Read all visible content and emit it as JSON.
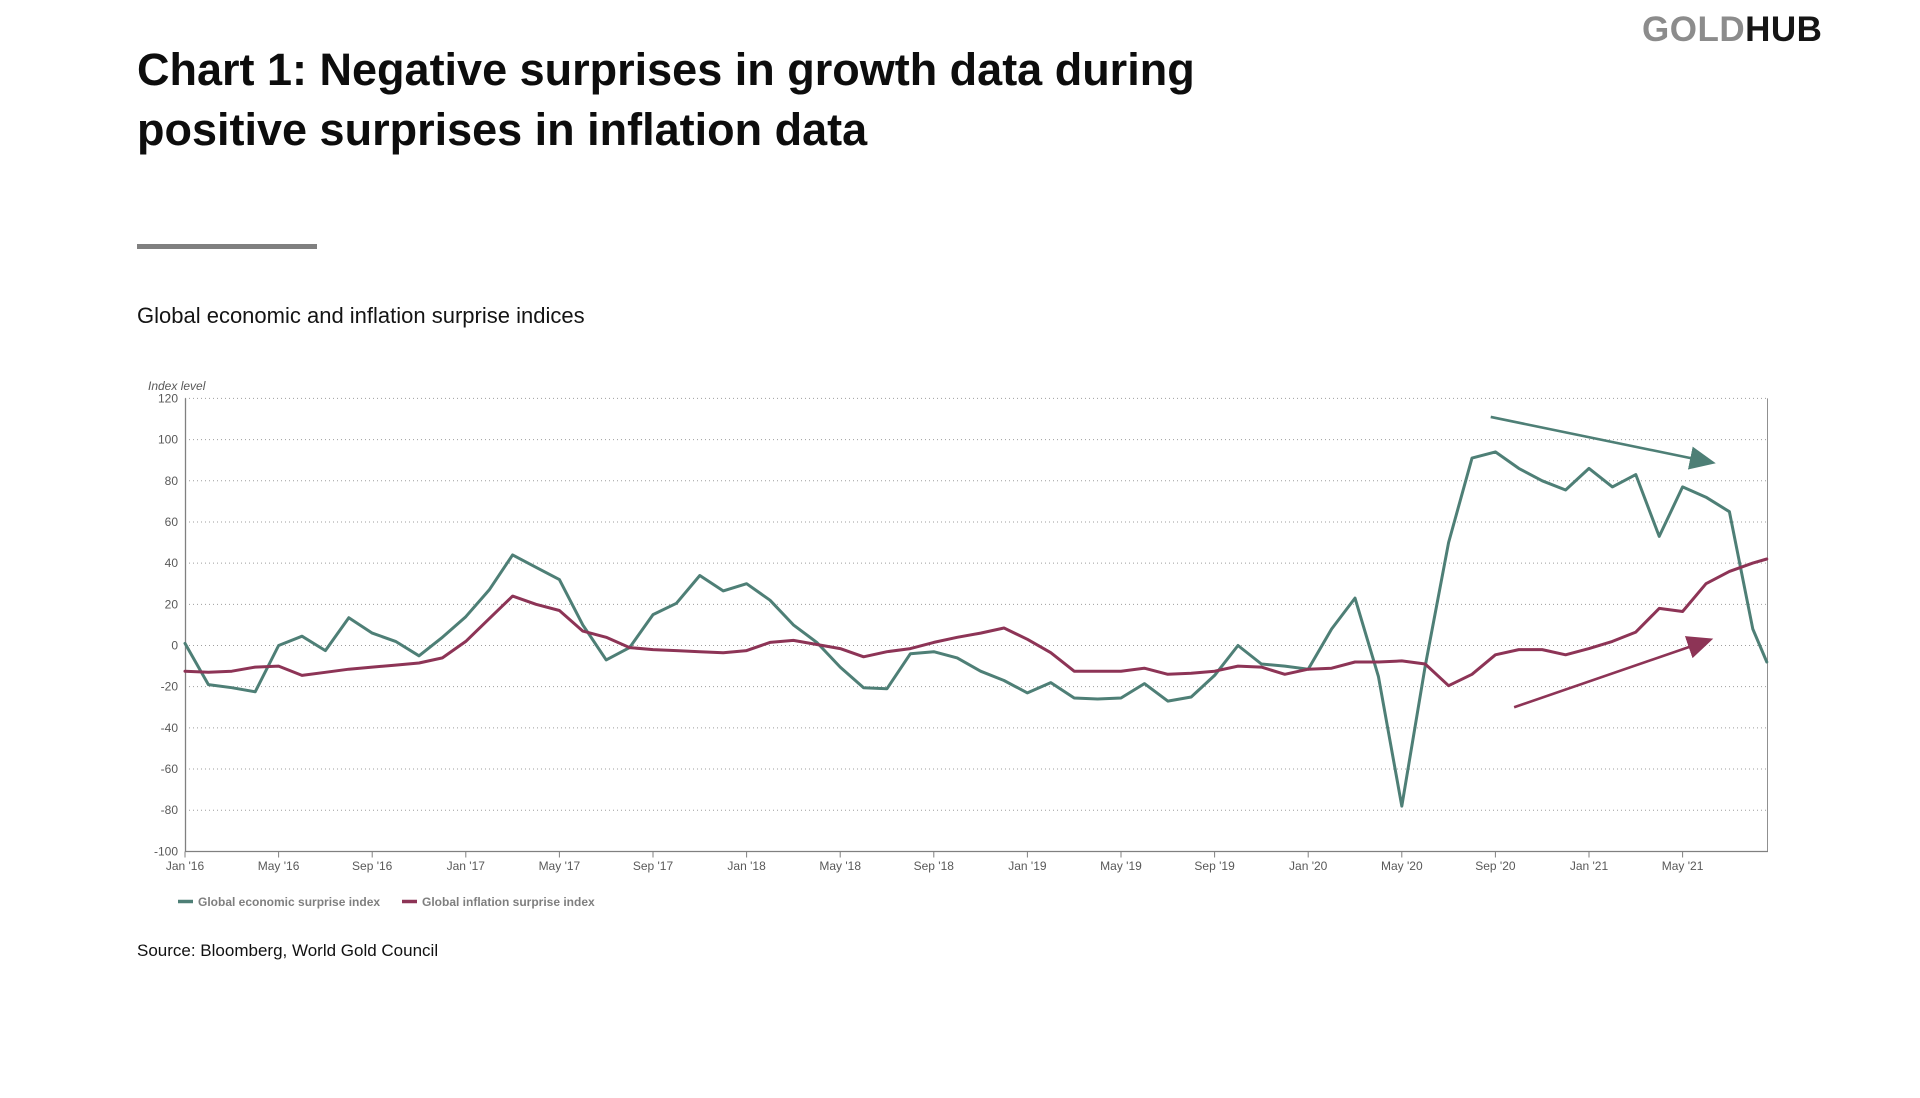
{
  "logo": {
    "part1": "GOLD",
    "part2": "HUB"
  },
  "title": "Chart 1: Negative surprises in growth data during positive surprises in inflation data",
  "subtitle": "Global economic and inflation surprise indices",
  "source": "Source: Bloomberg, World Gold Council",
  "chart_data": {
    "type": "line",
    "title": "Global economic and inflation surprise indices",
    "ylabel": "Index level",
    "xlabel": "",
    "ylim": [
      -100,
      120
    ],
    "ytick_step": 20,
    "grid": "horizontal-dotted",
    "legend_position": "bottom-left",
    "x_unit": "months since Jan 2016",
    "x_tick_every_months": 4,
    "x_tick_labels": [
      "Jan '16",
      "May '16",
      "Sep '16",
      "Jan '17",
      "May '17",
      "Sep '17",
      "Jan '18",
      "May '18",
      "Sep '18",
      "Jan '19",
      "May '19",
      "Sep '19",
      "Jan '20",
      "May '20",
      "Sep '20",
      "Jan '21",
      "May '21"
    ],
    "series": [
      {
        "name": "Global economic surprise index",
        "color": "#4e7f76",
        "points": [
          [
            0,
            1
          ],
          [
            1,
            -19
          ],
          [
            2,
            -20.5
          ],
          [
            3,
            -22.5
          ],
          [
            4,
            0
          ],
          [
            5,
            4.5
          ],
          [
            6,
            -2.5
          ],
          [
            7,
            13.5
          ],
          [
            8,
            6
          ],
          [
            9,
            2
          ],
          [
            10,
            -5
          ],
          [
            11,
            4
          ],
          [
            12,
            14
          ],
          [
            13,
            27
          ],
          [
            14,
            44
          ],
          [
            15,
            38
          ],
          [
            16,
            32
          ],
          [
            17,
            10
          ],
          [
            18,
            -7
          ],
          [
            19,
            -1
          ],
          [
            20,
            15
          ],
          [
            21,
            20.5
          ],
          [
            22,
            34
          ],
          [
            23,
            26.5
          ],
          [
            24,
            30
          ],
          [
            25,
            22
          ],
          [
            26,
            10
          ],
          [
            27,
            1.5
          ],
          [
            28,
            -10.5
          ],
          [
            29,
            -20.5
          ],
          [
            30,
            -21
          ],
          [
            31,
            -4
          ],
          [
            32,
            -3
          ],
          [
            33,
            -6
          ],
          [
            34,
            -12.5
          ],
          [
            35,
            -17
          ],
          [
            36,
            -23
          ],
          [
            37,
            -18
          ],
          [
            38,
            -25.5
          ],
          [
            39,
            -26
          ],
          [
            40,
            -25.5
          ],
          [
            41,
            -18.5
          ],
          [
            42,
            -27
          ],
          [
            43,
            -25
          ],
          [
            44,
            -14.5
          ],
          [
            45,
            0
          ],
          [
            46,
            -9
          ],
          [
            47,
            -10
          ],
          [
            48,
            -11.5
          ],
          [
            49,
            8
          ],
          [
            50,
            23
          ],
          [
            51,
            -15
          ],
          [
            52,
            -78
          ],
          [
            53,
            -10
          ],
          [
            54,
            50
          ],
          [
            55,
            91
          ],
          [
            56,
            94
          ],
          [
            57,
            86
          ],
          [
            58,
            80
          ],
          [
            59,
            75.5
          ],
          [
            60,
            86
          ],
          [
            61,
            77
          ],
          [
            62,
            83
          ],
          [
            63,
            53
          ],
          [
            64,
            77
          ],
          [
            65,
            72
          ],
          [
            66,
            65
          ],
          [
            67,
            8
          ],
          [
            67.6,
            -8
          ]
        ]
      },
      {
        "name": "Global inflation surprise index",
        "color": "#8d3456",
        "points": [
          [
            0,
            -12.5
          ],
          [
            1,
            -13
          ],
          [
            2,
            -12.5
          ],
          [
            3,
            -10.5
          ],
          [
            4,
            -10
          ],
          [
            5,
            -14.5
          ],
          [
            6,
            -13
          ],
          [
            7,
            -11.5
          ],
          [
            8,
            -10.5
          ],
          [
            9,
            -9.5
          ],
          [
            10,
            -8.5
          ],
          [
            11,
            -6
          ],
          [
            12,
            2
          ],
          [
            13,
            13
          ],
          [
            14,
            24
          ],
          [
            15,
            20
          ],
          [
            16,
            17
          ],
          [
            17,
            7
          ],
          [
            18,
            4
          ],
          [
            19,
            -1
          ],
          [
            20,
            -2
          ],
          [
            21,
            -2.5
          ],
          [
            22,
            -3
          ],
          [
            23,
            -3.5
          ],
          [
            24,
            -2.5
          ],
          [
            25,
            1.5
          ],
          [
            26,
            2.5
          ],
          [
            27,
            0.5
          ],
          [
            28,
            -1.5
          ],
          [
            29,
            -5.5
          ],
          [
            30,
            -3
          ],
          [
            31,
            -1.5
          ],
          [
            32,
            1.5
          ],
          [
            33,
            4
          ],
          [
            34,
            6
          ],
          [
            35,
            8.5
          ],
          [
            36,
            3
          ],
          [
            37,
            -3.5
          ],
          [
            38,
            -12.5
          ],
          [
            39,
            -12.5
          ],
          [
            40,
            -12.5
          ],
          [
            41,
            -11
          ],
          [
            42,
            -14
          ],
          [
            43,
            -13.5
          ],
          [
            44,
            -12.5
          ],
          [
            45,
            -10
          ],
          [
            46,
            -10.5
          ],
          [
            47,
            -14
          ],
          [
            48,
            -11.5
          ],
          [
            49,
            -11
          ],
          [
            50,
            -8
          ],
          [
            51,
            -8
          ],
          [
            52,
            -7.5
          ],
          [
            53,
            -9
          ],
          [
            54,
            -19.5
          ],
          [
            55,
            -14
          ],
          [
            56,
            -4.5
          ],
          [
            57,
            -2
          ],
          [
            58,
            -2
          ],
          [
            59,
            -4.5
          ],
          [
            60,
            -1.5
          ],
          [
            61,
            2
          ],
          [
            62,
            6.5
          ],
          [
            63,
            18
          ],
          [
            64,
            16.5
          ],
          [
            65,
            30
          ],
          [
            66,
            36
          ],
          [
            67,
            40
          ],
          [
            67.6,
            42
          ]
        ]
      }
    ],
    "annotations": [
      {
        "type": "arrow",
        "name": "economic-trend-arrow",
        "color": "#4e7f76",
        "from": [
          55.8,
          111
        ],
        "to": [
          65.2,
          89
        ]
      },
      {
        "type": "arrow",
        "name": "inflation-trend-arrow",
        "color": "#8d3456",
        "from": [
          56.8,
          -30
        ],
        "to": [
          65.1,
          2.5
        ]
      }
    ]
  }
}
